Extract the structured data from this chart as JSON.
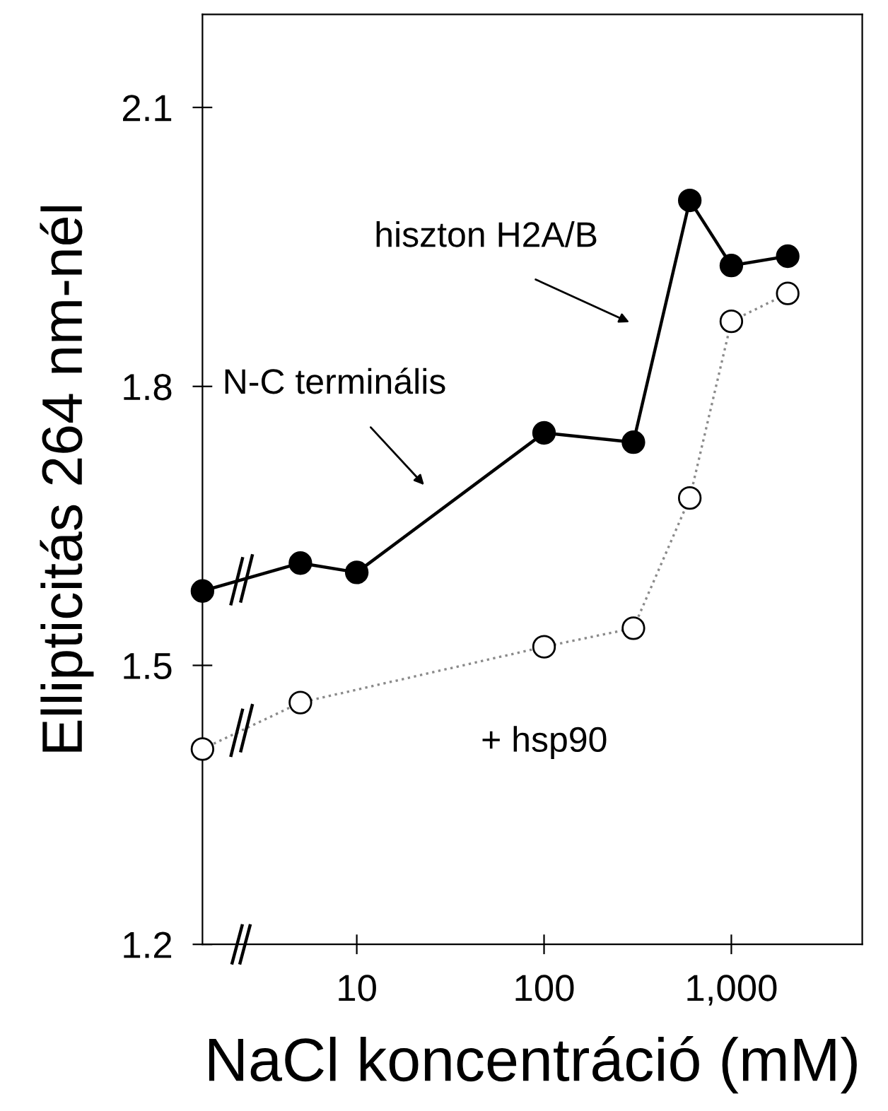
{
  "chart_data": {
    "type": "line",
    "xlabel": "NaCl koncentráció (mM)",
    "ylabel": "Ellipticitás 264 nm-nél",
    "log": "x",
    "xlim": [
      1.5,
      5000
    ],
    "xticks": [
      10,
      100,
      {
        "value": 1000,
        "label": "1,000"
      }
    ],
    "ylim": [
      1.2,
      2.2
    ],
    "yticks": [
      1.2,
      1.5,
      1.8,
      2.1
    ],
    "grid": false,
    "legend": false,
    "marker": "circle",
    "series": [
      {
        "color": "#000000",
        "line_style": "solid",
        "x": [
          1.5,
          5,
          10,
          100,
          300,
          600,
          1000,
          2000
        ],
        "values": [
          1.58,
          1.61,
          1.6,
          1.75,
          1.74,
          2.0,
          1.93,
          1.94
        ]
      },
      {
        "color": "#8a8a8a",
        "line_style": "dotted",
        "x": [
          1.5,
          5,
          100,
          300,
          600,
          1000,
          2000
        ],
        "values": [
          1.41,
          1.46,
          1.52,
          1.54,
          1.68,
          1.87,
          1.9
        ]
      }
    ],
    "annotations": [
      "hiszton H2A/B",
      "N-C terminális",
      "+ hsp90"
    ]
  }
}
